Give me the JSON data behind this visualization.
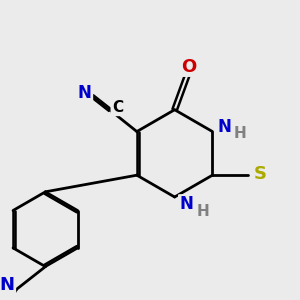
{
  "bg_color": "#ebebeb",
  "bond_color": "#000000",
  "bond_width": 2.0,
  "colors": {
    "C": "#000000",
    "N": "#0000cc",
    "O": "#cc0000",
    "S": "#aaaa00",
    "H": "#808080"
  },
  "font_size": 13,
  "fig_size": [
    3.0,
    3.0
  ],
  "dpi": 100
}
